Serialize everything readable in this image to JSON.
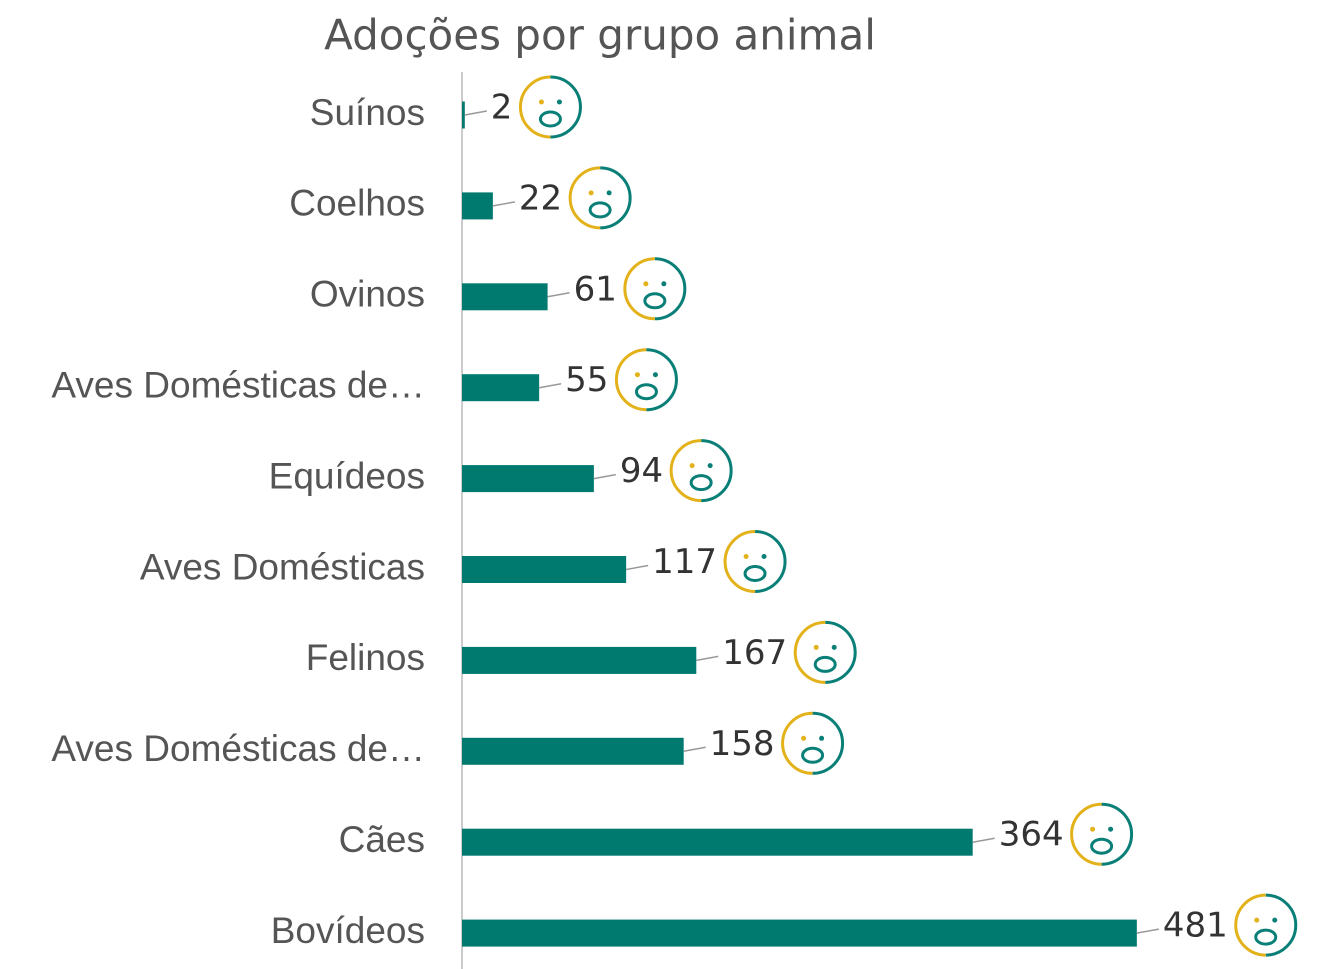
{
  "chart_data": {
    "type": "bar",
    "orientation": "horizontal",
    "title": "Adoções por grupo animal",
    "categories": [
      "Suínos",
      "Coelhos",
      "Ovinos",
      "Aves Domésticas de…",
      "Equídeos",
      "Aves Domésticas",
      "Felinos",
      "Aves Domésticas de…",
      "Cães",
      "Bovídeos"
    ],
    "values": [
      2,
      22,
      61,
      55,
      94,
      117,
      167,
      158,
      364,
      481
    ],
    "color": "#00796f"
  }
}
